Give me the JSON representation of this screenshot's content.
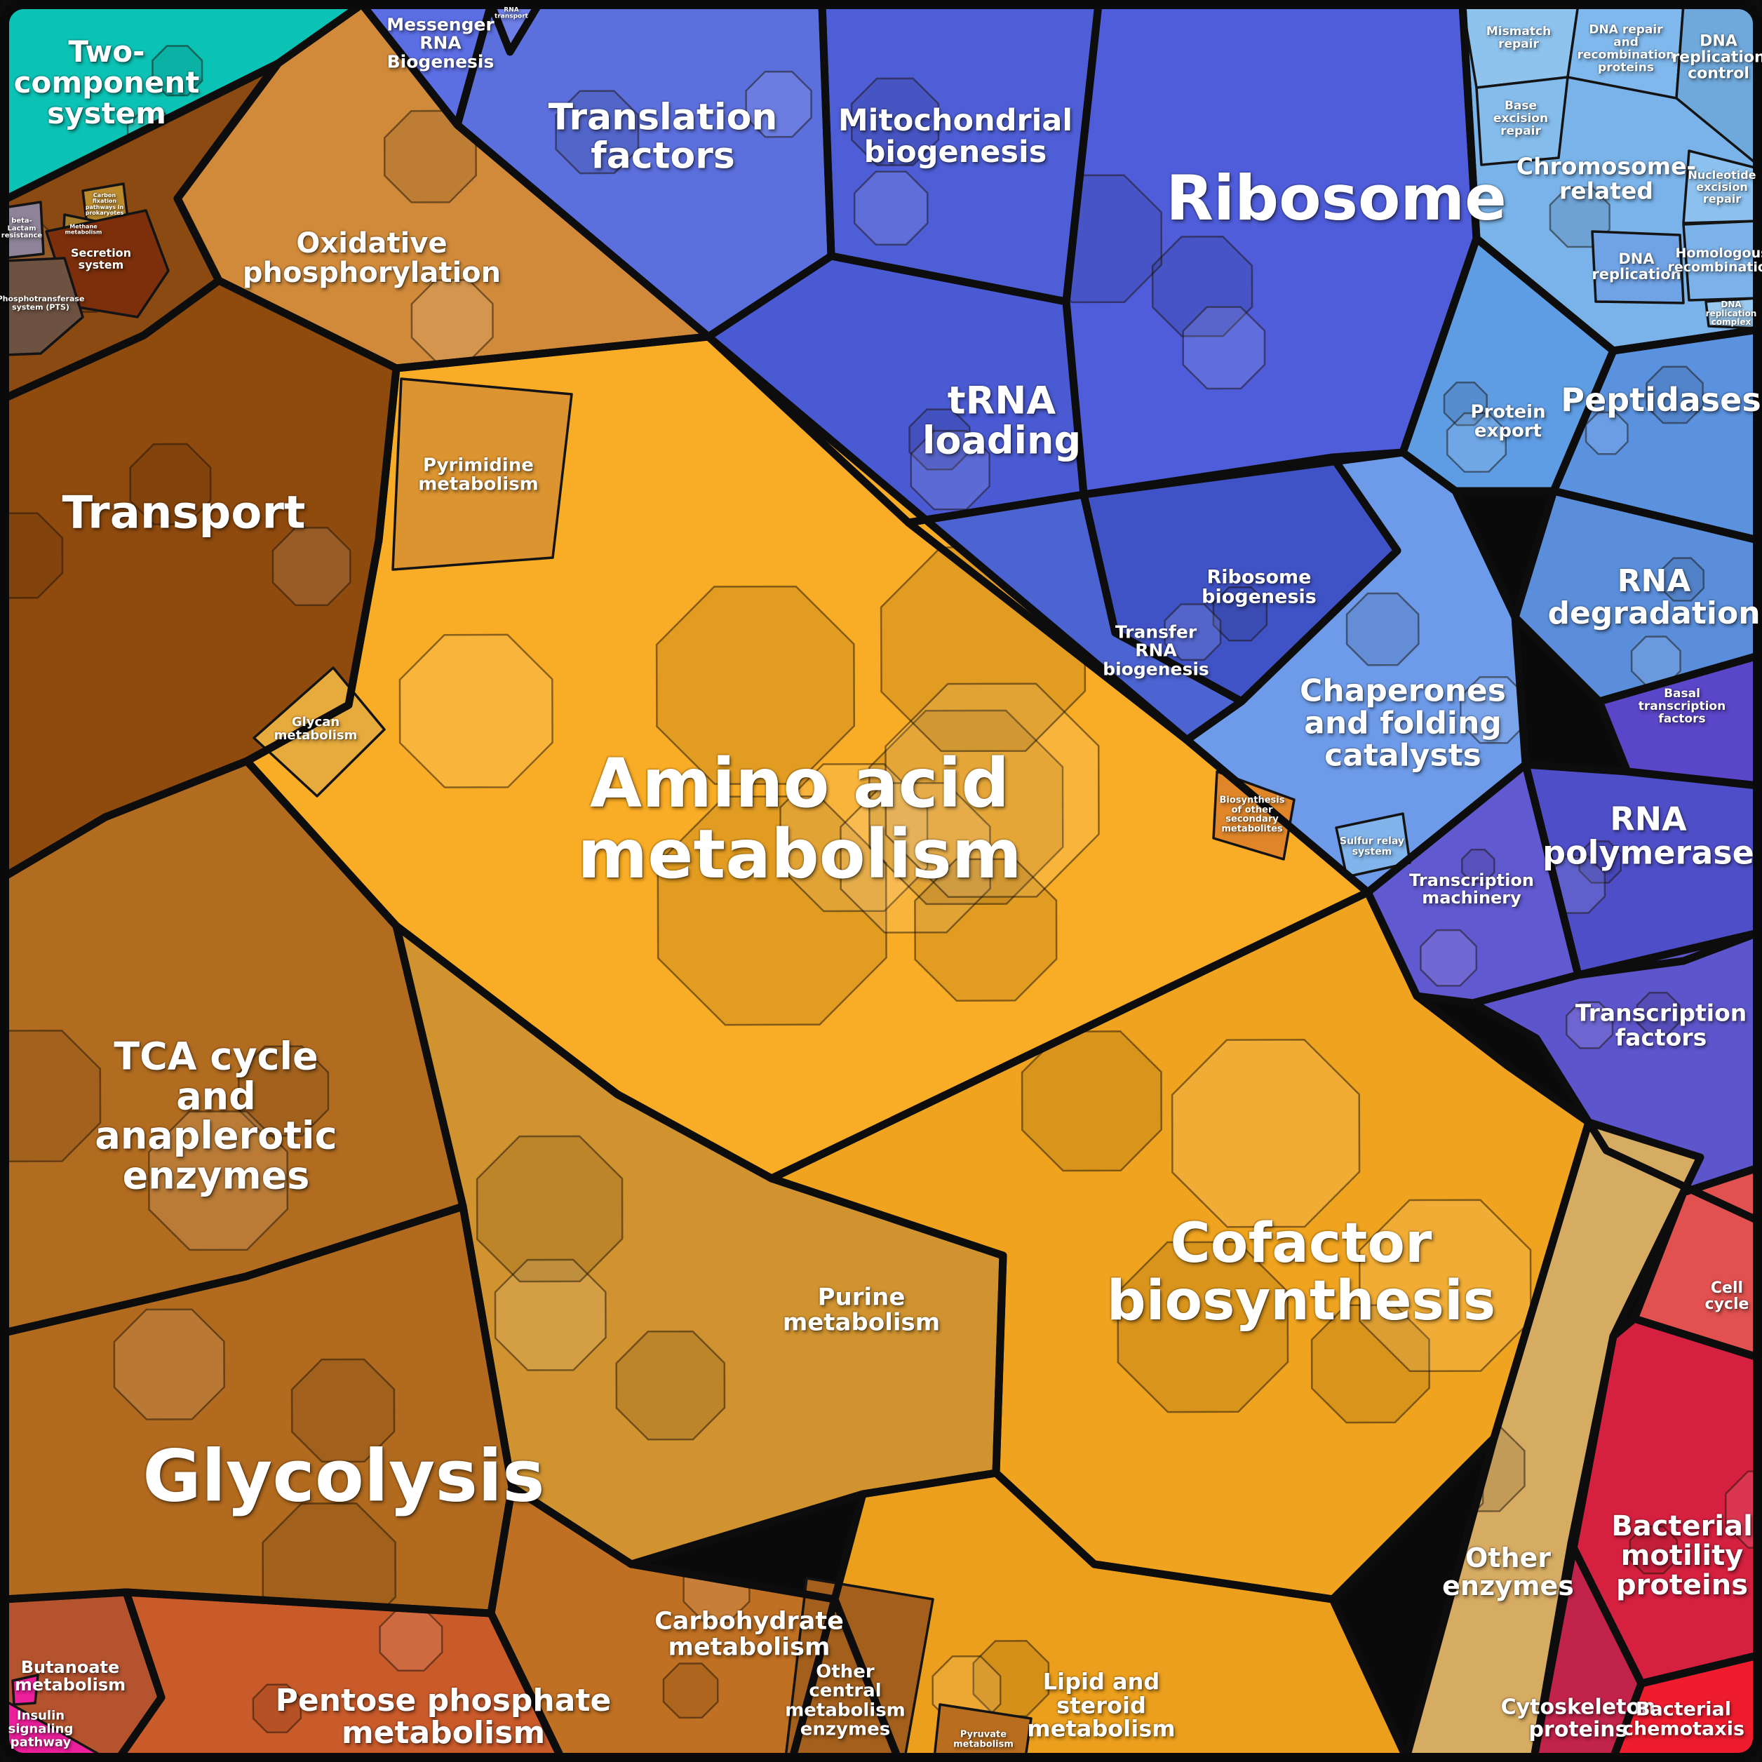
{
  "chart_data": {
    "type": "voronoi-treemap",
    "title": "",
    "legend_position": "none",
    "notes": "Proteomaps-style polygon treemap of functional categories; cell area encodes relative abundance (no numeric axis labels shown in image; percents are visual estimates).",
    "categories": [
      {
        "label": "Two-component system",
        "color": "#0bc3b5",
        "approx_area_percent": 3.2
      },
      {
        "label": "Secretion system",
        "color": "#7c2f0a",
        "approx_area_percent": 0.5
      },
      {
        "label": "Phosphotransferase system (PTS)",
        "color": "#6d5242",
        "approx_area_percent": 0.25
      },
      {
        "label": "beta-Lactam resistance",
        "color": "#8e8398",
        "approx_area_percent": 0.1
      },
      {
        "label": "Carbon fixation pathways in prokaryotes",
        "color": "#bb8b2e",
        "approx_area_percent": 0.08
      },
      {
        "label": "Methane metabolism",
        "color": "#a87c2a",
        "approx_area_percent": 0.05
      },
      {
        "label": "Transport",
        "color": "#8f4a0e",
        "approx_area_percent": 5.5
      },
      {
        "label": "Oxidative phosphorylation",
        "color": "#d08a3a",
        "approx_area_percent": 3.8
      },
      {
        "label": "Messenger RNA Biogenesis",
        "color": "#5c6ee4",
        "approx_area_percent": 0.5
      },
      {
        "label": "RNA transport",
        "color": "#6d7fe6",
        "approx_area_percent": 0.05
      },
      {
        "label": "Translation factors",
        "color": "#5b6fdd",
        "approx_area_percent": 3.0
      },
      {
        "label": "Mitochondrial biogenesis",
        "color": "#4e5ed6",
        "approx_area_percent": 1.8
      },
      {
        "label": "Ribosome",
        "color": "#4f5dda",
        "approx_area_percent": 5.5
      },
      {
        "label": "tRNA loading",
        "color": "#4a5ad2",
        "approx_area_percent": 2.2
      },
      {
        "label": "Ribosome biogenesis",
        "color": "#4053c6",
        "approx_area_percent": 0.9
      },
      {
        "label": "Transfer RNA biogenesis",
        "color": "#4c63d2",
        "approx_area_percent": 0.9
      },
      {
        "label": "Chaperones and folding catalysts",
        "color": "#6d9be9",
        "approx_area_percent": 3.0
      },
      {
        "label": "Chromosome-related",
        "color": "#79b3e9",
        "approx_area_percent": 1.6
      },
      {
        "label": "Mismatch repair",
        "color": "#8ec3ee",
        "approx_area_percent": 0.2
      },
      {
        "label": "DNA repair and recombination proteins",
        "color": "#7fb8ec",
        "approx_area_percent": 0.3
      },
      {
        "label": "DNA replication control",
        "color": "#6fa9dc",
        "approx_area_percent": 0.5
      },
      {
        "label": "Base excision repair",
        "color": "#84bcec",
        "approx_area_percent": 0.2
      },
      {
        "label": "Nucleotide excision repair",
        "color": "#8cc0ee",
        "approx_area_percent": 0.2
      },
      {
        "label": "DNA replication",
        "color": "#6fa3e6",
        "approx_area_percent": 0.3
      },
      {
        "label": "Homologous recombination",
        "color": "#7cb2ea",
        "approx_area_percent": 0.3
      },
      {
        "label": "DNA replication complex",
        "color": "#9bcaf0",
        "approx_area_percent": 0.06
      },
      {
        "label": "Protein export",
        "color": "#5e9ce4",
        "approx_area_percent": 0.9
      },
      {
        "label": "Peptidases",
        "color": "#5a92e0",
        "approx_area_percent": 2.4
      },
      {
        "label": "RNA degradation",
        "color": "#5a8edb",
        "approx_area_percent": 1.8
      },
      {
        "label": "Basal transcription factors",
        "color": "#5a46c8",
        "approx_area_percent": 0.3
      },
      {
        "label": "RNA polymerase",
        "color": "#4e4fc8",
        "approx_area_percent": 1.6
      },
      {
        "label": "Transcription machinery",
        "color": "#6159cf",
        "approx_area_percent": 0.9
      },
      {
        "label": "Sulfur relay system",
        "color": "#80b4ea",
        "approx_area_percent": 0.1
      },
      {
        "label": "Transcription factors",
        "color": "#5d55cb",
        "approx_area_percent": 1.7
      },
      {
        "label": "Amino acid metabolism",
        "color": "#f9ac25",
        "approx_area_percent": 13.0
      },
      {
        "label": "Pyrimidine metabolism",
        "color": "#dc9430",
        "approx_area_percent": 1.1
      },
      {
        "label": "Glycan metabolism",
        "color": "#e7aa3c",
        "approx_area_percent": 0.4
      },
      {
        "label": "Biosynthesis of other secondary metabolites",
        "color": "#e08629",
        "approx_area_percent": 0.15
      },
      {
        "label": "Purine metabolism",
        "color": "#d0932f",
        "approx_area_percent": 3.2
      },
      {
        "label": "Cofactor biosynthesis",
        "color": "#efa31f",
        "approx_area_percent": 7.5
      },
      {
        "label": "Lipid and steroid metabolism",
        "color": "#eb9f1c",
        "approx_area_percent": 2.2
      },
      {
        "label": "Other central metabolism enzymes",
        "color": "#a35f1b",
        "approx_area_percent": 0.8
      },
      {
        "label": "Pyruvate metabolism",
        "color": "#b96d1f",
        "approx_area_percent": 0.15
      },
      {
        "label": "Carbohydrate metabolism",
        "color": "#c07022",
        "approx_area_percent": 2.0
      },
      {
        "label": "Pentose phosphate metabolism",
        "color": "#c95a2a",
        "approx_area_percent": 2.6
      },
      {
        "label": "Butanoate metabolism",
        "color": "#b5532f",
        "approx_area_percent": 0.6
      },
      {
        "label": "Insulin signaling pathway",
        "color": "#ee1f9c",
        "approx_area_percent": 0.2
      },
      {
        "label": "TCA cycle and anaplerotic enzymes",
        "color": "#b26c20",
        "approx_area_percent": 5.8
      },
      {
        "label": "Glycolysis",
        "color": "#b16a1e",
        "approx_area_percent": 6.5
      },
      {
        "label": "Other enzymes",
        "color": "#d6ab62",
        "approx_area_percent": 2.4
      },
      {
        "label": "Cell cycle",
        "color": "#e0514f",
        "approx_area_percent": 0.5
      },
      {
        "label": "Bacterial motility proteins",
        "color": "#d6203f",
        "approx_area_percent": 2.6
      },
      {
        "label": "Cytoskeleton proteins",
        "color": "#c2234a",
        "approx_area_percent": 0.8
      },
      {
        "label": "Bacterial chemotaxis",
        "color": "#ef1c2e",
        "approx_area_percent": 0.9
      }
    ]
  },
  "regions": {
    "teal": {
      "label": "Two-\ncomponent\nsystem",
      "color": "#0bc3b5"
    },
    "corner": {
      "label": "",
      "color": "#8a4a12"
    },
    "secretion": {
      "label": "Secretion\nsystem",
      "color": "#7c2f0a"
    },
    "pts": {
      "label": "Phosphotransferase\nsystem (PTS)",
      "color": "#6d5242"
    },
    "beta_lactam": {
      "label": "beta-\nLactam\nresistance",
      "color": "#8e8398"
    },
    "carbon_fixation": {
      "label": "Carbon\nfixation\npathways in\nprokaryotes",
      "color": "#bb8b2e"
    },
    "methane": {
      "label": "Methane\nmetabolism",
      "color": "#a87c2a"
    },
    "transport": {
      "label": "Transport",
      "color": "#8f4a0e"
    },
    "oxidative": {
      "label": "Oxidative\nphosphorylation",
      "color": "#d08a3a"
    },
    "messenger": {
      "label": "Messenger\nRNA\nBiogenesis",
      "color": "#5c6ee4"
    },
    "rna_transport": {
      "label": "RNA\ntransport",
      "color": "#6d7fe6"
    },
    "translation": {
      "label": "Translation\nfactors",
      "color": "#5b6fdd"
    },
    "mitochondrial": {
      "label": "Mitochondrial\nbiogenesis",
      "color": "#4e5ed6"
    },
    "ribosome": {
      "label": "Ribosome",
      "color": "#4f5dda"
    },
    "trna_loading": {
      "label": "tRNA\nloading",
      "color": "#4a5ad2"
    },
    "ribo_biogenesis": {
      "label": "Ribosome\nbiogenesis",
      "color": "#4053c6"
    },
    "transfer_rna": {
      "label": "Transfer\nRNA\nbiogenesis",
      "color": "#4c63d2"
    },
    "chaperones": {
      "label": "Chaperones\nand folding\ncatalysts",
      "color": "#6d9be9"
    },
    "chromosome": {
      "label": "Chromosome-\nrelated",
      "color": "#79b3e9"
    },
    "mismatch": {
      "label": "Mismatch\nrepair",
      "color": "#8ec3ee"
    },
    "dna_repair": {
      "label": "DNA repair\nand\nrecombination\nproteins",
      "color": "#7fb8ec"
    },
    "dna_rep_ctrl": {
      "label": "DNA\nreplication\ncontrol",
      "color": "#6fa9dc"
    },
    "base_excision": {
      "label": "Base\nexcision\nrepair",
      "color": "#84bcec"
    },
    "nucleotide_excision": {
      "label": "Nucleotide\nexcision\nrepair",
      "color": "#8cc0ee"
    },
    "dna_replication": {
      "label": "DNA\nreplication",
      "color": "#6fa3e6"
    },
    "homologous": {
      "label": "Homologous\nrecombination",
      "color": "#7cb2ea"
    },
    "dna_rep_complex": {
      "label": "DNA\nreplication\ncomplex",
      "color": "#9bcaf0"
    },
    "protein_export": {
      "label": "Protein\nexport",
      "color": "#5e9ce4"
    },
    "peptidases": {
      "label": "Peptidases",
      "color": "#5a92e0"
    },
    "rna_degradation": {
      "label": "RNA\ndegradation",
      "color": "#5a8edb"
    },
    "basal_txn": {
      "label": "Basal\ntranscription\nfactors",
      "color": "#5a46c8"
    },
    "rna_polymerase": {
      "label": "RNA\npolymerase",
      "color": "#4e4fc8"
    },
    "txn_machinery": {
      "label": "Transcription\nmachinery",
      "color": "#6159cf"
    },
    "sulfur_relay": {
      "label": "Sulfur relay\nsystem",
      "color": "#80b4ea"
    },
    "txn_factors": {
      "label": "Transcription\nfactors",
      "color": "#5d55cb"
    },
    "amino": {
      "label": "Amino acid\nmetabolism",
      "color": "#f9ac25"
    },
    "pyrimidine": {
      "label": "Pyrimidine\nmetabolism",
      "color": "#dc9430"
    },
    "glycan": {
      "label": "Glycan\nmetabolism",
      "color": "#e7aa3c"
    },
    "biosynth_secondary": {
      "label": "Biosynthesis\nof other\nsecondary\nmetabolites",
      "color": "#e08629"
    },
    "purine": {
      "label": "Purine\nmetabolism",
      "color": "#d0932f"
    },
    "cofactor": {
      "label": "Cofactor\nbiosynthesis",
      "color": "#efa31f"
    },
    "lipid": {
      "label": "Lipid and\nsteroid\nmetabolism",
      "color": "#eb9f1c"
    },
    "other_central": {
      "label": "Other\ncentral\nmetabolism\nenzymes",
      "color": "#a35f1b"
    },
    "pyruvate": {
      "label": "Pyruvate\nmetabolism",
      "color": "#b96d1f"
    },
    "carb": {
      "label": "Carbohydrate\nmetabolism",
      "color": "#c07022"
    },
    "pentose": {
      "label": "Pentose phosphate\nmetabolism",
      "color": "#c95a2a"
    },
    "butanoate": {
      "label": "Butanoate\nmetabolism",
      "color": "#b5532f"
    },
    "insulin": {
      "label": "Insulin\nsignaling\npathway",
      "color": "#ee1f9c"
    },
    "tca": {
      "label": "TCA cycle\nand\nanaplerotic\nenzymes",
      "color": "#b26c20"
    },
    "glycolysis": {
      "label": "Glycolysis",
      "color": "#b16a1e"
    },
    "other_enzymes": {
      "label": "Other\nenzymes",
      "color": "#d6ab62"
    },
    "cell_cycle": {
      "label": "Cell\ncycle",
      "color": "#e0514f"
    },
    "motility": {
      "label": "Bacterial\nmotility\nproteins",
      "color": "#d6203f"
    },
    "cytoskeleton": {
      "label": "Cytoskeleton\nproteins",
      "color": "#c2234a"
    },
    "chemotaxis": {
      "label": "Bacterial\nchemotaxis",
      "color": "#ef1c2e"
    }
  }
}
